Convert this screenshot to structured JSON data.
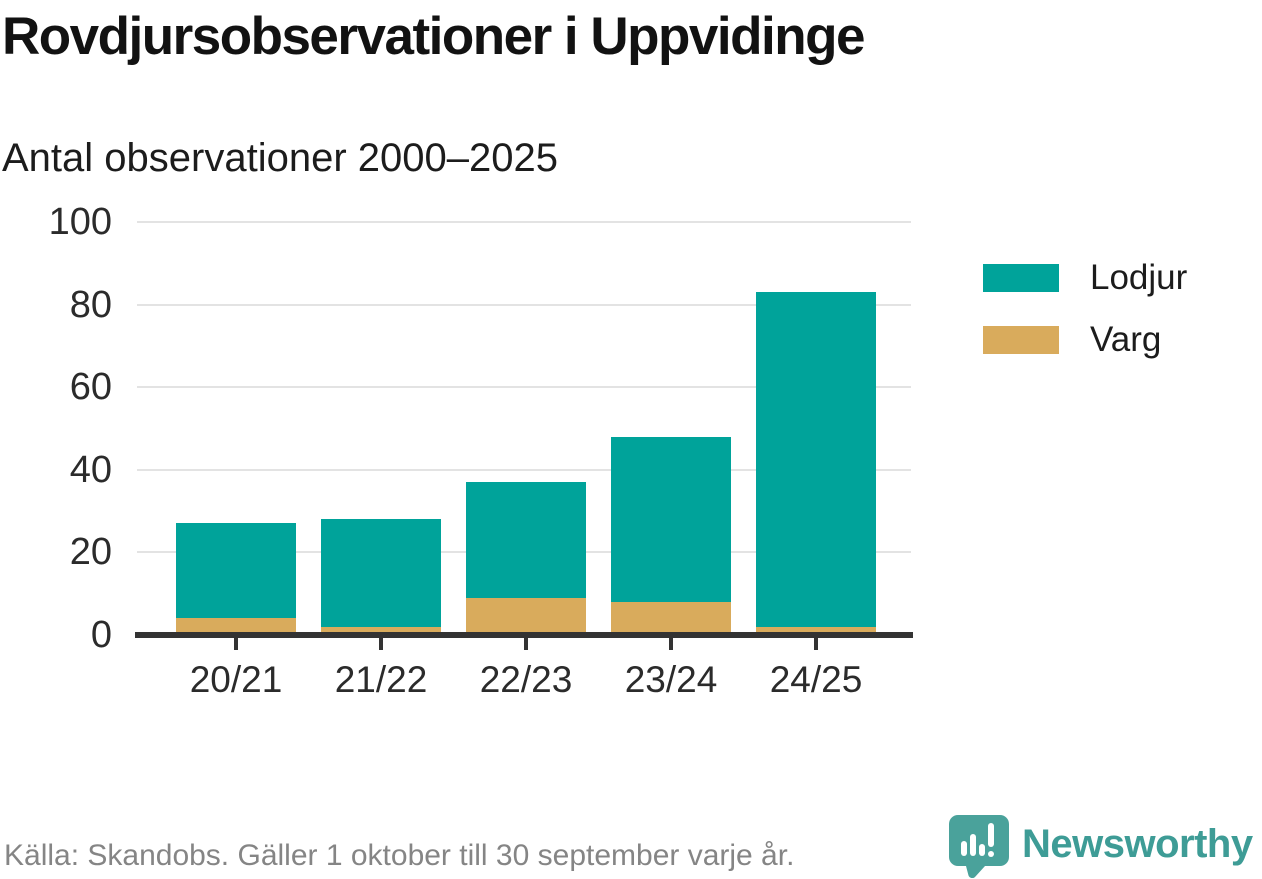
{
  "header": {
    "title": "Rovdjursobservationer i Uppvidinge",
    "subtitle": "Antal observationer 2000–2025"
  },
  "colors": {
    "lodjur_teal": "#00a39a",
    "varg_gold": "#d9ab5c",
    "axis_dark": "#333333",
    "gridline_gray": "#e3e3e3",
    "brand_teal": "#3e9c96",
    "footer_gray": "#858585"
  },
  "chart_data": {
    "type": "bar",
    "stacked": true,
    "title": "Rovdjursobservationer i Uppvidinge",
    "subtitle": "Antal observationer 2000–2025",
    "categories": [
      "20/21",
      "21/22",
      "22/23",
      "23/24",
      "24/25"
    ],
    "series": [
      {
        "name": "Lodjur",
        "color": "#00a39a",
        "values": [
          23,
          26,
          28,
          40,
          81
        ]
      },
      {
        "name": "Varg",
        "color": "#d9ab5c",
        "values": [
          4,
          2,
          9,
          8,
          2
        ]
      }
    ],
    "stack_totals": [
      27,
      28,
      37,
      48,
      83
    ],
    "xlabel": "",
    "ylabel": "Antal observationer",
    "ylim": [
      0,
      100
    ],
    "yticks": [
      0,
      20,
      40,
      60,
      80,
      100
    ],
    "grid": true,
    "legend_position": "right",
    "legend_entries": [
      "Lodjur",
      "Varg"
    ]
  },
  "footer": {
    "source_note": "Källa: Skandobs. Gäller 1 oktober till 30 september varje år.",
    "brand_name": "Newsworthy"
  }
}
